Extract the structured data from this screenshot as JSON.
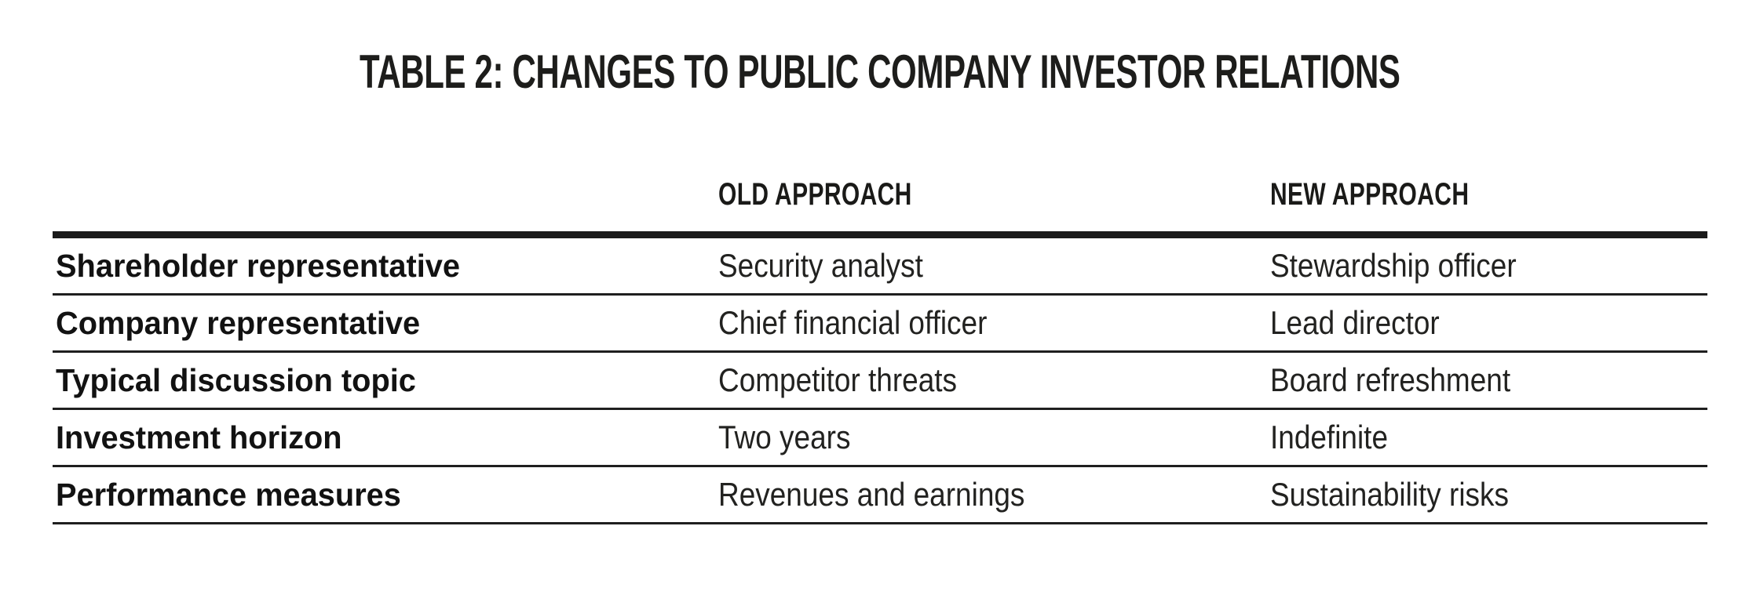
{
  "title": "TABLE 2: CHANGES TO PUBLIC COMPANY INVESTOR RELATIONS",
  "table": {
    "columns": [
      "",
      "OLD APPROACH",
      "NEW APPROACH"
    ],
    "rows": [
      {
        "label": "Shareholder representative",
        "old": "Security analyst",
        "new": "Stewardship officer"
      },
      {
        "label": "Company representative",
        "old": "Chief financial officer",
        "new": "Lead director"
      },
      {
        "label": "Typical discussion topic",
        "old": "Competitor threats",
        "new": "Board refreshment"
      },
      {
        "label": "Investment horizon",
        "old": "Two years",
        "new": "Indefinite"
      },
      {
        "label": "Performance measures",
        "old": "Revenues and earnings",
        "new": "Sustainability risks"
      }
    ],
    "colors": {
      "rule_heavy": "#1a1a1a",
      "rule_light": "#1f1f1f",
      "text": "#1d1d1b",
      "background": "#ffffff"
    }
  }
}
